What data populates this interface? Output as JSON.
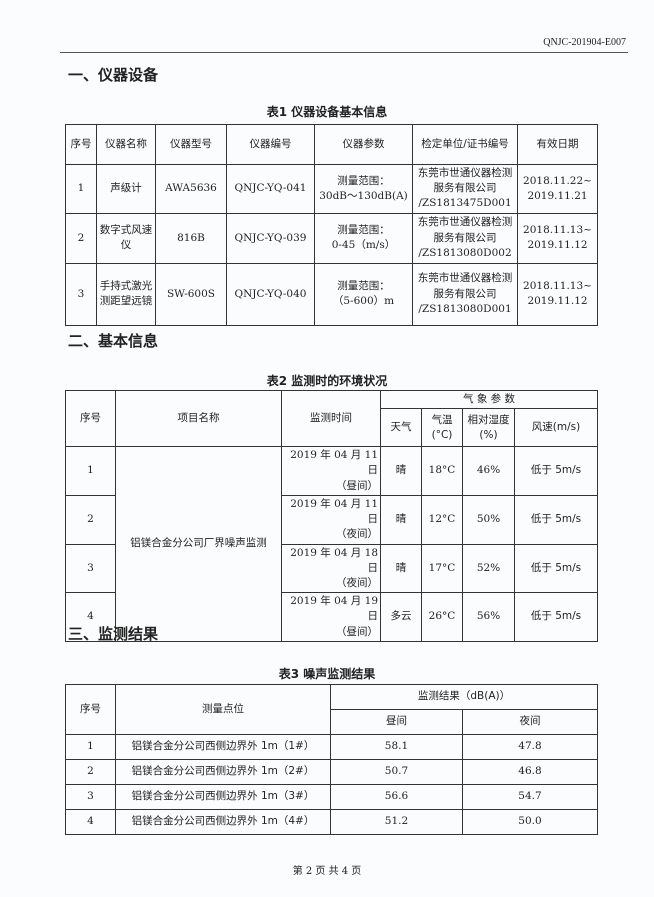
{
  "doc_number": "QNJC-201904-E007",
  "section1": {
    "title": "一、仪器设备",
    "caption": "表1   仪器设备基本信息",
    "headers": [
      "序号",
      "仪器名称",
      "仪器型号",
      "仪器编号",
      "仪器参数",
      "检定单位/证书编号",
      "有效日期"
    ],
    "rows": [
      [
        "1",
        "声级计",
        "AWA5636",
        "QNJC-YQ-041",
        "测量范围：\n30dB～130dB(A)",
        "东莞市世通仪器检测服务有限公司\n/ZS1813475D001",
        "2018.11.22~\n2019.11.21"
      ],
      [
        "2",
        "数字式风速仪",
        "816B",
        "QNJC-YQ-039",
        "测量范围：\n0-45（m/s）",
        "东莞市世通仪器检测服务有限公司\n/ZS1813080D002",
        "2018.11.13~\n2019.11.12"
      ],
      [
        "3",
        "手持式激光测距望远镜",
        "SW-600S",
        "QNJC-YQ-040",
        "测量范围：\n（5-600）m",
        "东莞市世通仪器检测服务有限公司\n/ZS1813080D001",
        "2018.11.13~\n2019.11.12"
      ]
    ]
  },
  "section2": {
    "title": "二、基本信息",
    "caption": "表2   监测时的环境状况",
    "headers": {
      "no": "序号",
      "project": "项目名称",
      "time": "监测时间",
      "group": "气 象 参 数",
      "weather": "天气",
      "temp": "气温\n(°C)",
      "humidity": "相对湿度\n(%)",
      "wind": "风速(m/s)"
    },
    "project_name": "铝镁合金分公司厂界噪声监测",
    "rows": [
      [
        "1",
        "2019 年 04 月 11 日\n（昼间）",
        "晴",
        "18°C",
        "46%",
        "低于 5m/s"
      ],
      [
        "2",
        "2019 年 04 月 11 日\n（夜间）",
        "晴",
        "12°C",
        "50%",
        "低于 5m/s"
      ],
      [
        "3",
        "2019 年 04 月 18 日\n（夜间）",
        "晴",
        "17°C",
        "52%",
        "低于 5m/s"
      ],
      [
        "4",
        "2019 年 04 月 19 日\n（昼间）",
        "多云",
        "26°C",
        "56%",
        "低于 5m/s"
      ]
    ]
  },
  "section3": {
    "title": "三、监测结果",
    "caption": "表3   噪声监测结果",
    "headers": {
      "no": "序号",
      "point": "测量点位",
      "result": "监测结果（dB(A)）",
      "day": "昼间",
      "night": "夜间"
    },
    "rows": [
      [
        "1",
        "铝镁合金分公司西侧边界外 1m（1#）",
        "58.1",
        "47.8"
      ],
      [
        "2",
        "铝镁合金分公司西侧边界外 1m（2#）",
        "50.7",
        "46.8"
      ],
      [
        "3",
        "铝镁合金分公司西侧边界外 1m（3#）",
        "56.6",
        "54.7"
      ],
      [
        "4",
        "铝镁合金分公司西侧边界外 1m（4#）",
        "51.2",
        "50.0"
      ]
    ]
  },
  "footer": "第 2 页   共 4 页"
}
